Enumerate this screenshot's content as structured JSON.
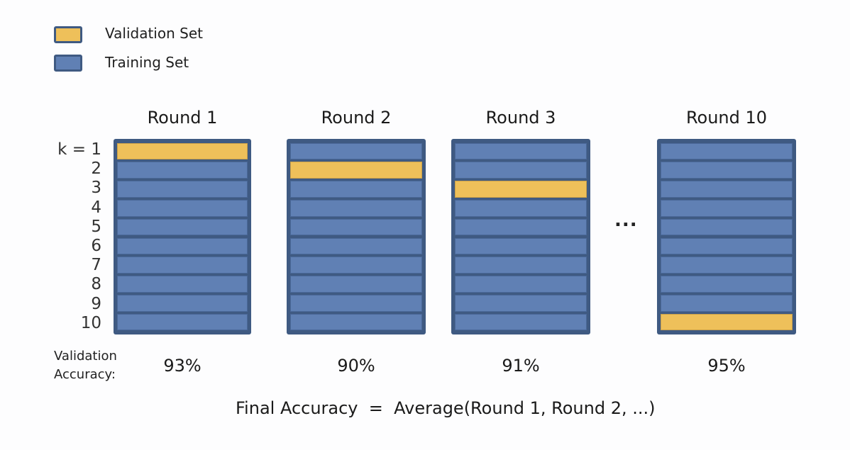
{
  "legend": [
    {
      "label": "Validation Set",
      "color": "#eec05a"
    },
    {
      "label": "Training Set",
      "color": "#6080b4"
    }
  ],
  "fold_labels": [
    "k = 1",
    "2",
    "3",
    "4",
    "5",
    "6",
    "7",
    "8",
    "9",
    "10"
  ],
  "rounds": [
    {
      "title": "Round 1",
      "validation_fold": 1,
      "accuracy": "93%"
    },
    {
      "title": "Round 2",
      "validation_fold": 2,
      "accuracy": "90%"
    },
    {
      "title": "Round 3",
      "validation_fold": 3,
      "accuracy": "91%"
    },
    {
      "title": "Round 10",
      "validation_fold": 10,
      "accuracy": "95%"
    }
  ],
  "ellipsis": "...",
  "accuracy_label_line1": "Validation",
  "accuracy_label_line2": "Accuracy:",
  "formula": "Final Accuracy  =  Average(Round 1, Round 2, ...)",
  "colors": {
    "validation": "#eec05a",
    "training": "#6080b4",
    "border": "#3f5a82"
  }
}
